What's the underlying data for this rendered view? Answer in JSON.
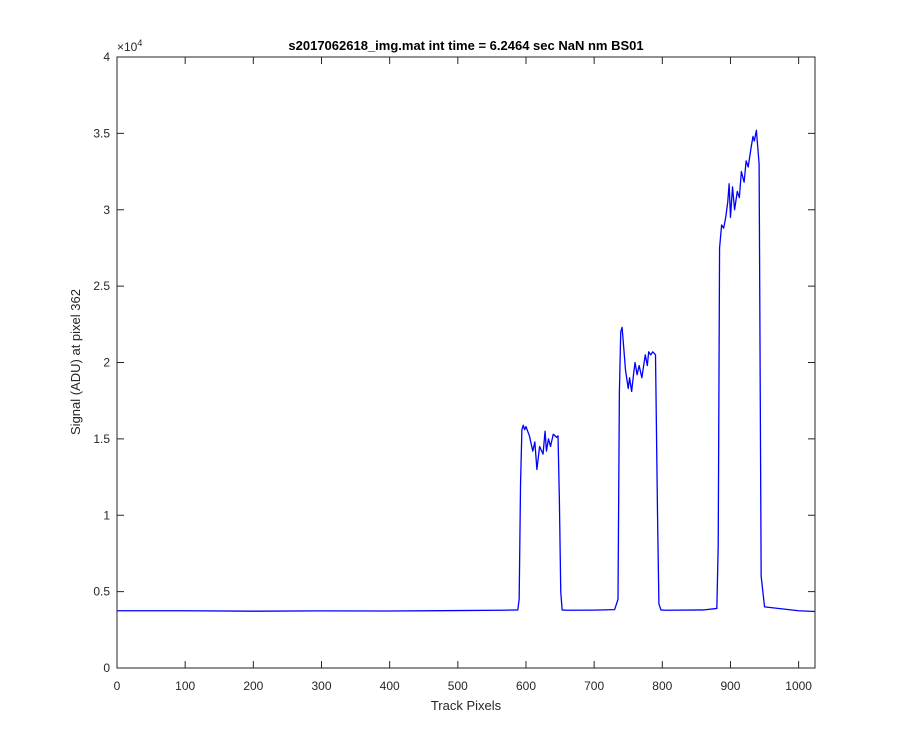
{
  "chart_data": {
    "type": "line",
    "title": "s2017062618_img.mat int time = 6.2464 sec  NaN nm BS01",
    "xlabel": "Track Pixels",
    "ylabel": "Signal (ADU) at pixel 362",
    "y_exponent_base": "×10",
    "y_exponent_power": "4",
    "xlim": [
      0,
      1024
    ],
    "ylim": [
      0,
      40000
    ],
    "xticks": [
      0,
      100,
      200,
      300,
      400,
      500,
      600,
      700,
      800,
      900,
      1000
    ],
    "yticks": [
      0,
      5000,
      10000,
      15000,
      20000,
      25000,
      30000,
      35000,
      40000
    ],
    "xtick_labels": [
      "0",
      "100",
      "200",
      "300",
      "400",
      "500",
      "600",
      "700",
      "800",
      "900",
      "1000"
    ],
    "ytick_labels": [
      "0",
      "0.5",
      "1",
      "1.5",
      "2",
      "2.5",
      "3",
      "3.5",
      "4"
    ],
    "grid": false,
    "line_color": "#0000ff",
    "series": [
      {
        "x": [
          0,
          100,
          200,
          300,
          400,
          500,
          560,
          588,
          590,
          592,
          594,
          596,
          598,
          600,
          605,
          610,
          613,
          616,
          620,
          625,
          628,
          630,
          633,
          636,
          640,
          645,
          647,
          649,
          651,
          653,
          660,
          700,
          730,
          735,
          737,
          739,
          741,
          743,
          746,
          750,
          752,
          755,
          758,
          760,
          763,
          766,
          770,
          775,
          778,
          780,
          783,
          786,
          790,
          793,
          795,
          798,
          805,
          860,
          880,
          882,
          884,
          887,
          890,
          893,
          896,
          898,
          900,
          903,
          906,
          910,
          913,
          916,
          920,
          923,
          926,
          930,
          933,
          935,
          938,
          940,
          942,
          945,
          950,
          1000,
          1024
        ],
        "y": [
          3750,
          3750,
          3720,
          3740,
          3730,
          3760,
          3780,
          3800,
          4500,
          12000,
          15600,
          15900,
          15600,
          15800,
          15200,
          14200,
          14800,
          13000,
          14500,
          14000,
          15500,
          14200,
          15000,
          14500,
          15300,
          15100,
          15200,
          11000,
          5000,
          3800,
          3780,
          3790,
          3820,
          4500,
          18000,
          22000,
          22300,
          21200,
          19500,
          18300,
          19000,
          18100,
          19300,
          20000,
          19200,
          19800,
          19000,
          20500,
          19800,
          20700,
          20500,
          20700,
          20500,
          10000,
          4200,
          3800,
          3780,
          3800,
          3900,
          8000,
          27500,
          29000,
          28800,
          29500,
          30500,
          31700,
          29500,
          31500,
          30000,
          31200,
          30800,
          32500,
          31800,
          33200,
          32800,
          34000,
          34800,
          34500,
          35200,
          34100,
          33000,
          6000,
          4000,
          3750,
          3700
        ]
      }
    ]
  }
}
